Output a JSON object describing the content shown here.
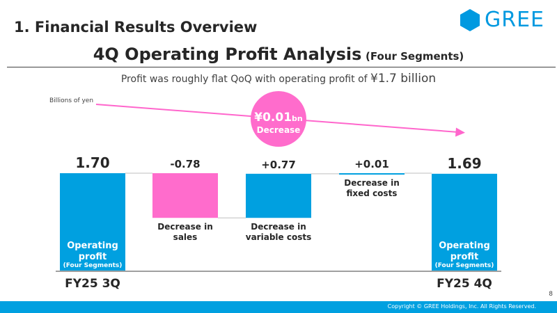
{
  "header": {
    "section_title": "1. Financial Results Overview",
    "logo_text": "GREE"
  },
  "title": {
    "main": "4Q Operating Profit Analysis",
    "sub": "(Four Segments)"
  },
  "subtitle": {
    "text": "Profit was roughly flat QoQ with operating profit of ",
    "amount": "¥1.7 billion"
  },
  "colors": {
    "blue": "#00a0e0",
    "pink": "#ff6ccc",
    "arrow": "#ff66cc",
    "connector": "#bfbfbf",
    "axis": "#404040"
  },
  "chart_data": {
    "type": "waterfall",
    "units": "Billions of yen",
    "steps": [
      {
        "name": "FY25 3Q",
        "kind": "total",
        "value": 1.7,
        "value_label": "1.70",
        "inner_label": "Operating profit",
        "inner_sub": "(Four Segments)",
        "axis_label": "FY25 3Q"
      },
      {
        "name": "Decrease in sales",
        "kind": "delta",
        "value": -0.78,
        "value_label": "-0.78",
        "caption": "Decrease in sales"
      },
      {
        "name": "Decrease in variable costs",
        "kind": "delta",
        "value": 0.77,
        "value_label": "+0.77",
        "caption": "Decrease in variable costs"
      },
      {
        "name": "Decrease in fixed costs",
        "kind": "delta",
        "value": 0.01,
        "value_label": "+0.01",
        "caption": "Decrease in fixed costs"
      },
      {
        "name": "FY25 4Q",
        "kind": "total",
        "value": 1.69,
        "value_label": "1.69",
        "inner_label": "Operating profit",
        "inner_sub": "(Four Segments)",
        "axis_label": "FY25 4Q"
      }
    ],
    "change": {
      "amount": "¥0.01",
      "unit": "bn",
      "label": "Decrease"
    }
  },
  "footer": {
    "copyright": "Copyright © GREE Holdings, Inc. All Rights Reserved.",
    "page": "8"
  }
}
